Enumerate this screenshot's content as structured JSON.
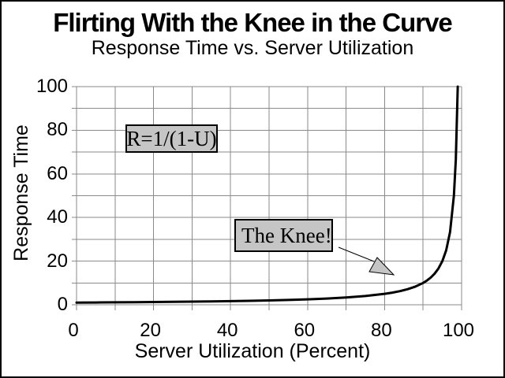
{
  "chart_data": {
    "type": "line",
    "title": "Flirting With the Knee in the Curve",
    "subtitle": "Response Time vs. Server Utilization",
    "xlabel": "Server Utilization (Percent)",
    "ylabel": "Response Time",
    "xlim": [
      0,
      100
    ],
    "ylim": [
      0,
      100
    ],
    "xticks": [
      0,
      20,
      40,
      60,
      80,
      100
    ],
    "yticks": [
      0,
      20,
      40,
      60,
      80,
      100
    ],
    "grid_step": 10,
    "grid": true,
    "legend": false,
    "formula": "R=1/(1-U)",
    "series": [
      {
        "name": "R=1/(1-U)",
        "points": [
          [
            0,
            1
          ],
          [
            5,
            1.053
          ],
          [
            10,
            1.111
          ],
          [
            15,
            1.176
          ],
          [
            20,
            1.25
          ],
          [
            25,
            1.333
          ],
          [
            30,
            1.429
          ],
          [
            35,
            1.538
          ],
          [
            40,
            1.667
          ],
          [
            45,
            1.818
          ],
          [
            50,
            2
          ],
          [
            55,
            2.222
          ],
          [
            60,
            2.5
          ],
          [
            65,
            2.857
          ],
          [
            70,
            3.333
          ],
          [
            75,
            4
          ],
          [
            80,
            5
          ],
          [
            82,
            5.556
          ],
          [
            84,
            6.25
          ],
          [
            86,
            7.143
          ],
          [
            88,
            8.333
          ],
          [
            90,
            10
          ],
          [
            91,
            11.111
          ],
          [
            92,
            12.5
          ],
          [
            93,
            14.286
          ],
          [
            94,
            16.667
          ],
          [
            95,
            20
          ],
          [
            96,
            25
          ],
          [
            97,
            33.333
          ],
          [
            98,
            50
          ],
          [
            98.5,
            66.667
          ],
          [
            99,
            100
          ]
        ]
      }
    ],
    "annotations": [
      {
        "text": "R=1/(1-U)"
      },
      {
        "text": "The Knee!",
        "arrow": true
      }
    ]
  },
  "colors": {
    "background": "#ffffff",
    "frame_border": "#000000",
    "grid": "#8a8a8a",
    "curve": "#000000",
    "text": "#000000",
    "annotation_bg": "#c5c5c5",
    "annotation_border": "#000000"
  }
}
